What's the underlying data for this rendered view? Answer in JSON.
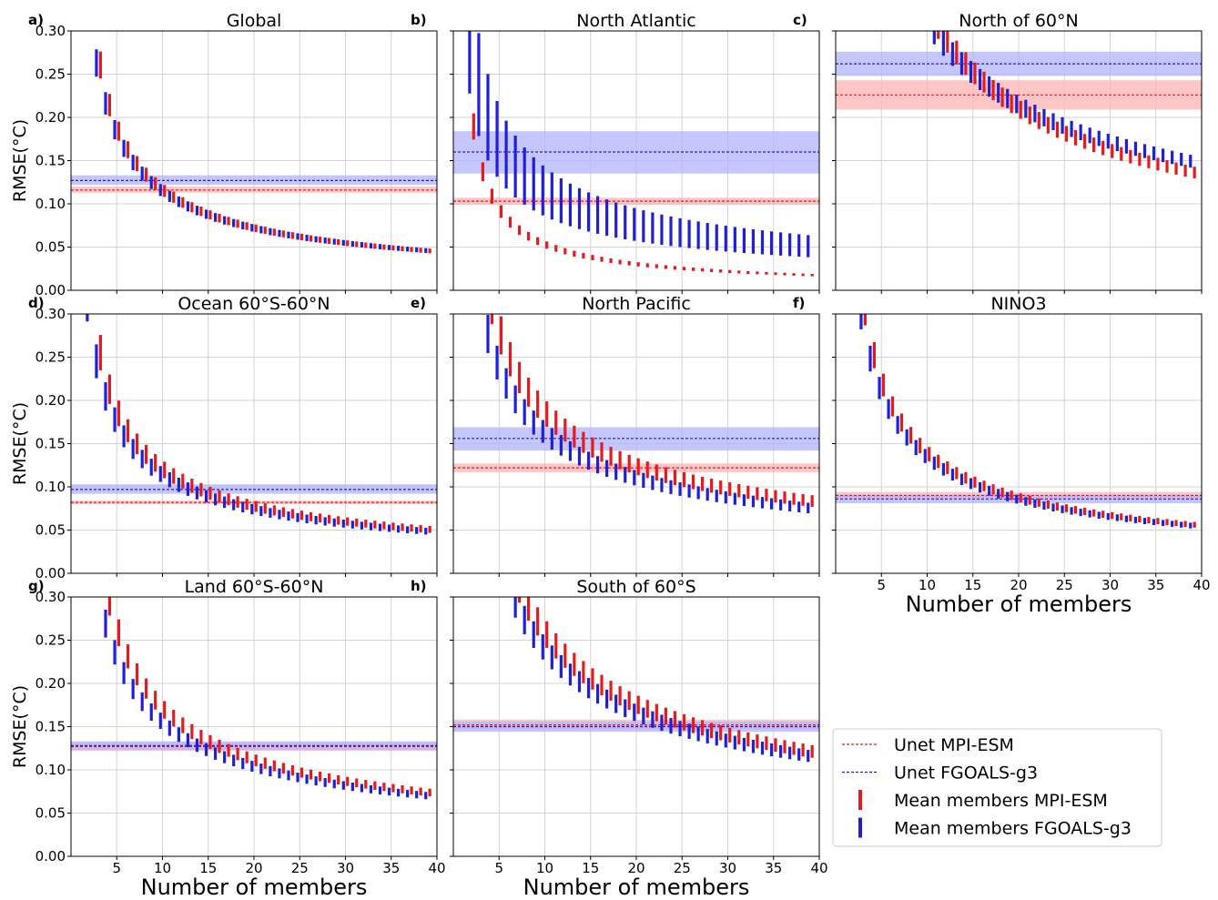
{
  "figure": {
    "ylabel": "RMSE(°C)",
    "xlabel": "Number of members",
    "legend": {
      "placement": "bottom-right",
      "items": [
        {
          "label": "Unet MPI-ESM",
          "kind": "dashed-line",
          "color": "#e41a1c"
        },
        {
          "label": "Unet FGOALS-g3",
          "kind": "dashed-line",
          "color": "#1f1fd6"
        },
        {
          "label": "Mean members MPI-ESM",
          "kind": "bar",
          "color": "#e41a1c"
        },
        {
          "label": "Mean members FGOALS-g3",
          "kind": "bar",
          "color": "#1f1fd6"
        }
      ]
    },
    "colors": {
      "mpi": "#e41a1c",
      "fgoals": "#1f1fd6",
      "mpi_band": "#ffb3b3",
      "fgoals_band": "#b3b3ff",
      "grid": "#d3d3d3"
    }
  },
  "chart_data": [
    {
      "type": "line",
      "panel_letter": "a)",
      "title": "Global",
      "xlim": [
        0,
        40
      ],
      "ylim": [
        0,
        0.3
      ],
      "xticks": [
        5,
        10,
        15,
        20,
        25,
        30,
        35,
        40
      ],
      "yticks": [
        "0.00",
        "0.05",
        "0.10",
        "0.15",
        "0.20",
        "0.25",
        "0.30"
      ],
      "show_xticklabels": false,
      "show_xlabel": false,
      "grid": true,
      "unet": {
        "mpi": {
          "value": 0.116,
          "band": [
            0.113,
            0.12
          ]
        },
        "fgoals": {
          "value": 0.127,
          "band": [
            0.122,
            0.133
          ]
        }
      },
      "members": {
        "mpi": {
          "k": 0.55,
          "p": 0.68,
          "spread": 0.06
        },
        "fgoals": {
          "k": 0.555,
          "p": 0.68,
          "spread": 0.06
        }
      }
    },
    {
      "type": "line",
      "panel_letter": "b)",
      "title": "North Atlantic",
      "xlim": [
        0,
        40
      ],
      "ylim": [
        0,
        0.3
      ],
      "xticks": [
        5,
        10,
        15,
        20,
        25,
        30,
        35,
        40
      ],
      "yticks": [],
      "show_xticklabels": false,
      "show_xlabel": false,
      "grid": true,
      "unet": {
        "mpi": {
          "value": 0.103,
          "band": [
            0.099,
            0.107
          ]
        },
        "fgoals": {
          "value": 0.16,
          "band": [
            0.135,
            0.184
          ]
        }
      },
      "members": {
        "mpi": {
          "k": 0.33,
          "p": 0.8,
          "spread": 0.08
        },
        "fgoals": {
          "k": 0.46,
          "p": 0.6,
          "spread": 0.25
        }
      }
    },
    {
      "type": "line",
      "panel_letter": "c)",
      "title": "North of 60°N",
      "xlim": [
        0,
        40
      ],
      "ylim": [
        0,
        0.3
      ],
      "xticks": [
        5,
        10,
        15,
        20,
        25,
        30,
        35,
        40
      ],
      "yticks": [],
      "show_xticklabels": false,
      "show_xlabel": false,
      "grid": true,
      "unet": {
        "mpi": {
          "value": 0.226,
          "band": [
            0.209,
            0.243
          ]
        },
        "fgoals": {
          "value": 0.262,
          "band": [
            0.248,
            0.276
          ]
        }
      },
      "members": {
        "mpi": {
          "k": 1.42,
          "p": 0.64,
          "spread": 0.05
        },
        "fgoals": {
          "k": 1.12,
          "p": 0.55,
          "spread": 0.05
        }
      }
    },
    {
      "type": "line",
      "panel_letter": "d)",
      "title": "Ocean 60°S-60°N",
      "xlim": [
        0,
        40
      ],
      "ylim": [
        0,
        0.3
      ],
      "xticks": [
        5,
        10,
        15,
        20,
        25,
        30,
        35,
        40
      ],
      "yticks": [
        "0.00",
        "0.05",
        "0.10",
        "0.15",
        "0.20",
        "0.25",
        "0.30"
      ],
      "show_xticklabels": false,
      "show_xlabel": false,
      "grid": true,
      "unet": {
        "mpi": {
          "value": 0.082,
          "band": [
            0.08,
            0.084
          ]
        },
        "fgoals": {
          "value": 0.097,
          "band": [
            0.092,
            0.103
          ]
        }
      },
      "members": {
        "mpi": {
          "k": 0.51,
          "p": 0.63,
          "spread": 0.08
        },
        "fgoals": {
          "k": 0.49,
          "p": 0.63,
          "spread": 0.08
        }
      }
    },
    {
      "type": "line",
      "panel_letter": "e)",
      "title": "North Pacific",
      "xlim": [
        0,
        40
      ],
      "ylim": [
        0,
        0.3
      ],
      "xticks": [
        5,
        10,
        15,
        20,
        25,
        30,
        35,
        40
      ],
      "yticks": [],
      "show_xticklabels": false,
      "show_xlabel": false,
      "grid": true,
      "unet": {
        "mpi": {
          "value": 0.122,
          "band": [
            0.117,
            0.127
          ]
        },
        "fgoals": {
          "value": 0.156,
          "band": [
            0.142,
            0.169
          ]
        }
      },
      "members": {
        "mpi": {
          "k": 0.7,
          "p": 0.58,
          "spread": 0.08
        },
        "fgoals": {
          "k": 0.61,
          "p": 0.57,
          "spread": 0.08
        }
      }
    },
    {
      "type": "line",
      "panel_letter": "f)",
      "title": "NINO3",
      "xlim": [
        0,
        40
      ],
      "ylim": [
        0,
        0.3
      ],
      "xticks": [
        5,
        10,
        15,
        20,
        25,
        30,
        35,
        40
      ],
      "yticks": [],
      "show_xticklabels": true,
      "show_xlabel": true,
      "grid": true,
      "unet": {
        "mpi": {
          "value": 0.09,
          "band": [
            0.087,
            0.094
          ]
        },
        "fgoals": {
          "value": 0.086,
          "band": [
            0.081,
            0.091
          ]
        }
      },
      "members": {
        "mpi": {
          "k": 0.63,
          "p": 0.66,
          "spread": 0.06
        },
        "fgoals": {
          "k": 0.62,
          "p": 0.66,
          "spread": 0.06
        }
      }
    },
    {
      "type": "line",
      "panel_letter": "g)",
      "title": "Land 60°S-60°N",
      "xlim": [
        0,
        40
      ],
      "ylim": [
        0,
        0.3
      ],
      "xticks": [
        5,
        10,
        15,
        20,
        25,
        30,
        35,
        40
      ],
      "yticks": [
        "0.00",
        "0.05",
        "0.10",
        "0.15",
        "0.20",
        "0.25",
        "0.30"
      ],
      "show_xticklabels": true,
      "show_xlabel": true,
      "grid": true,
      "unet": {
        "mpi": {
          "value": 0.127,
          "band": [
            0.122,
            0.132
          ]
        },
        "fgoals": {
          "value": 0.128,
          "band": [
            0.123,
            0.133
          ]
        }
      },
      "members": {
        "mpi": {
          "k": 0.69,
          "p": 0.61,
          "spread": 0.06
        },
        "fgoals": {
          "k": 0.61,
          "p": 0.59,
          "spread": 0.06
        }
      }
    },
    {
      "type": "line",
      "panel_letter": "h)",
      "title": "South of 60°S",
      "xlim": [
        0,
        40
      ],
      "ylim": [
        0,
        0.3
      ],
      "xticks": [
        5,
        10,
        15,
        20,
        25,
        30,
        35,
        40
      ],
      "yticks": [],
      "show_xticklabels": true,
      "show_xlabel": true,
      "grid": true,
      "unet": {
        "mpi": {
          "value": 0.152,
          "band": [
            0.147,
            0.158
          ]
        },
        "fgoals": {
          "value": 0.15,
          "band": [
            0.144,
            0.156
          ]
        }
      },
      "members": {
        "mpi": {
          "k": 0.91,
          "p": 0.55,
          "spread": 0.06
        },
        "fgoals": {
          "k": 0.84,
          "p": 0.54,
          "spread": 0.06
        }
      }
    }
  ]
}
